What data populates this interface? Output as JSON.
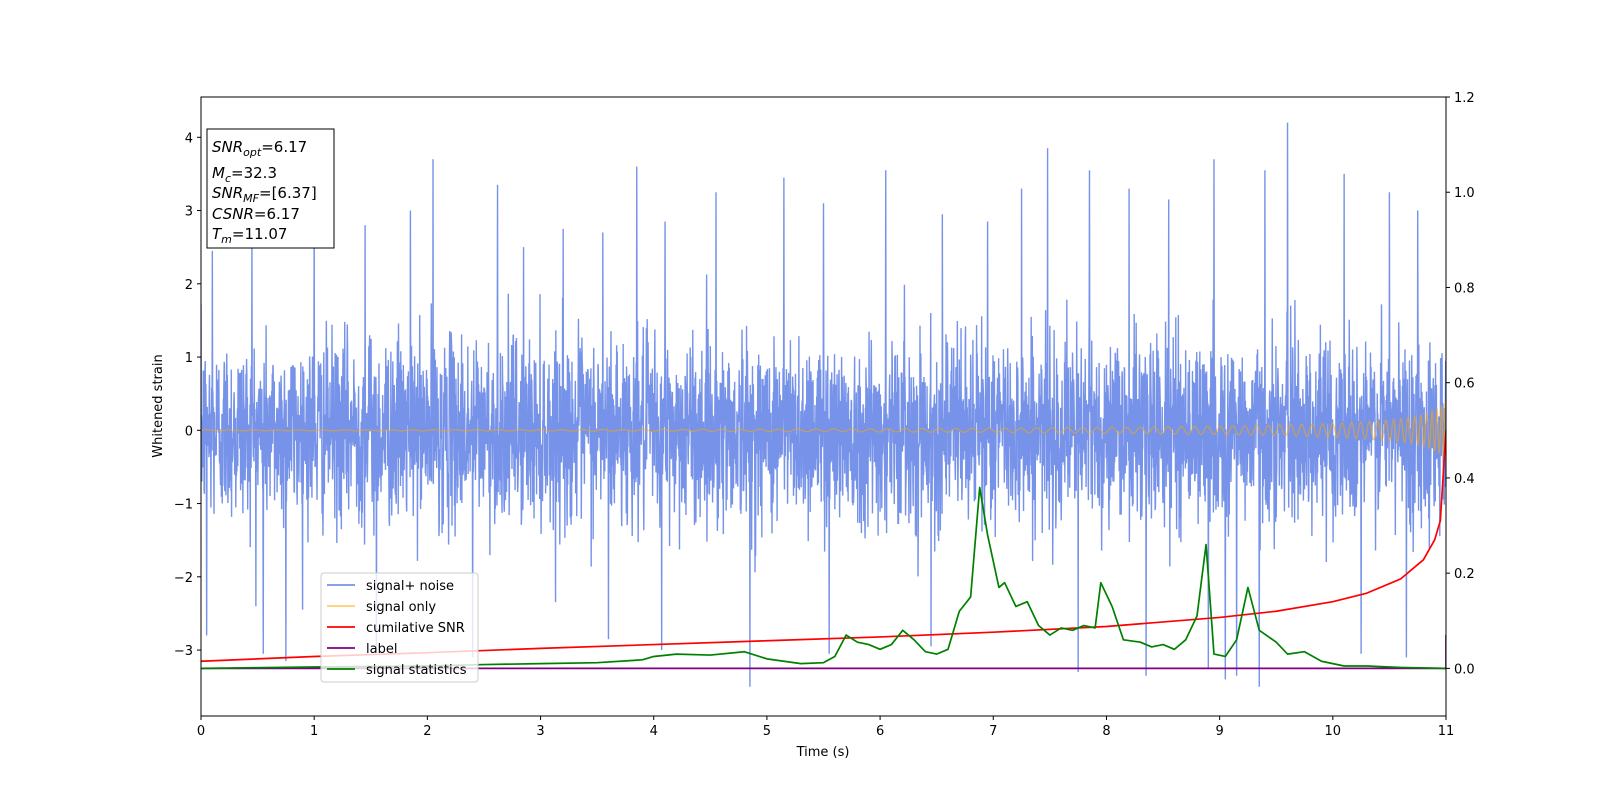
{
  "chart_data": {
    "type": "line",
    "xlabel": "Time (s)",
    "ylabel": "Whitened strain",
    "xlim": [
      0,
      11
    ],
    "ylim": [
      -3.9,
      4.55
    ],
    "y2lim": [
      -0.1,
      1.2
    ],
    "x_ticks": [
      "0",
      "1",
      "2",
      "3",
      "4",
      "5",
      "6",
      "7",
      "8",
      "9",
      "10",
      "11"
    ],
    "y_ticks": [
      "−3",
      "−2",
      "−1",
      "0",
      "1",
      "2",
      "3",
      "4"
    ],
    "y2_ticks": [
      "0.0",
      "0.2",
      "0.4",
      "0.6",
      "0.8",
      "1.0",
      "1.2"
    ],
    "grid": false,
    "legend_position": "lower-left",
    "info_box": {
      "snr_opt": {
        "base": "SNR",
        "sub": "opt",
        "value": "=6.17"
      },
      "mc": {
        "base": "M",
        "sub": "c",
        "value": "=32.3"
      },
      "snr_mf": {
        "base": "SNR",
        "sub": "MF",
        "value": "=[6.37]"
      },
      "csnr": {
        "base": "CSNR",
        "sub": "",
        "value": "=6.17"
      },
      "tm": {
        "base": "T",
        "sub": "m",
        "value": "=11.07"
      }
    },
    "series": [
      {
        "name": "signal+ noise",
        "color": "#4169e1",
        "axis": "left",
        "kind": "noise",
        "sigma": 1.0,
        "spikes": [
          [
            0.1,
            2.45
          ],
          [
            0.45,
            2.6
          ],
          [
            1.0,
            2.9
          ],
          [
            1.45,
            2.8
          ],
          [
            1.85,
            3.0
          ],
          [
            2.05,
            3.7
          ],
          [
            2.62,
            3.35
          ],
          [
            2.85,
            2.5
          ],
          [
            3.2,
            2.75
          ],
          [
            3.55,
            2.7
          ],
          [
            3.85,
            3.6
          ],
          [
            4.1,
            2.85
          ],
          [
            4.55,
            3.25
          ],
          [
            5.15,
            3.45
          ],
          [
            5.5,
            3.1
          ],
          [
            6.05,
            3.55
          ],
          [
            6.55,
            2.95
          ],
          [
            6.95,
            2.85
          ],
          [
            7.25,
            3.3
          ],
          [
            7.48,
            3.85
          ],
          [
            7.85,
            3.55
          ],
          [
            8.2,
            3.3
          ],
          [
            8.55,
            3.15
          ],
          [
            8.95,
            3.7
          ],
          [
            9.4,
            3.55
          ],
          [
            9.6,
            4.2
          ],
          [
            10.1,
            3.5
          ],
          [
            10.5,
            3.25
          ],
          [
            10.75,
            3.0
          ],
          [
            0.05,
            -2.8
          ],
          [
            0.55,
            -3.05
          ],
          [
            0.75,
            -3.15
          ],
          [
            1.55,
            -3.0
          ],
          [
            2.4,
            -3.1
          ],
          [
            3.6,
            -2.85
          ],
          [
            4.07,
            -3.0
          ],
          [
            4.85,
            -3.5
          ],
          [
            5.55,
            -3.05
          ],
          [
            6.45,
            -2.95
          ],
          [
            7.75,
            -3.3
          ],
          [
            8.35,
            -3.35
          ],
          [
            8.9,
            -3.25
          ],
          [
            9.05,
            -3.4
          ],
          [
            9.15,
            -3.35
          ],
          [
            9.35,
            -3.5
          ],
          [
            10.25,
            -3.05
          ],
          [
            10.65,
            -3.1
          ]
        ]
      },
      {
        "name": "signal only",
        "color": "#ffa500",
        "axis": "left",
        "kind": "chirp",
        "amplitude_start": 0.005,
        "amplitude_end": 0.42,
        "t_merge": 11.07
      },
      {
        "name": "cumilative SNR",
        "color": "#ff0000",
        "axis": "right",
        "x": [
          0,
          1,
          2,
          3,
          4,
          5,
          6,
          7,
          8,
          9,
          9.5,
          10,
          10.3,
          10.6,
          10.8,
          10.9,
          10.95,
          11.0
        ],
        "y": [
          0.015,
          0.025,
          0.033,
          0.042,
          0.05,
          0.058,
          0.066,
          0.076,
          0.088,
          0.107,
          0.12,
          0.14,
          0.158,
          0.188,
          0.228,
          0.27,
          0.31,
          0.5
        ]
      },
      {
        "name": "label",
        "color": "#800080",
        "axis": "right",
        "x": [
          0,
          10.99,
          11.0,
          11.0
        ],
        "y": [
          0.0,
          0.0,
          0.0,
          0.07
        ]
      },
      {
        "name": "signal statistics",
        "color": "#008000",
        "axis": "right",
        "x": [
          0,
          1,
          2,
          2.5,
          3,
          3.5,
          3.9,
          4.0,
          4.2,
          4.5,
          4.8,
          5.0,
          5.3,
          5.5,
          5.6,
          5.7,
          5.8,
          5.9,
          6.0,
          6.1,
          6.2,
          6.3,
          6.4,
          6.5,
          6.6,
          6.7,
          6.8,
          6.88,
          6.95,
          7.05,
          7.1,
          7.2,
          7.3,
          7.4,
          7.5,
          7.6,
          7.7,
          7.8,
          7.9,
          7.95,
          8.05,
          8.15,
          8.3,
          8.4,
          8.5,
          8.6,
          8.7,
          8.8,
          8.88,
          8.95,
          9.05,
          9.15,
          9.25,
          9.35,
          9.5,
          9.6,
          9.75,
          9.9,
          10.1,
          10.3,
          10.6,
          11.0
        ],
        "y": [
          0.0,
          0.003,
          0.005,
          0.008,
          0.01,
          0.012,
          0.018,
          0.025,
          0.03,
          0.028,
          0.035,
          0.02,
          0.01,
          0.012,
          0.025,
          0.07,
          0.055,
          0.05,
          0.04,
          0.05,
          0.08,
          0.06,
          0.035,
          0.03,
          0.04,
          0.12,
          0.15,
          0.38,
          0.28,
          0.17,
          0.18,
          0.13,
          0.14,
          0.09,
          0.07,
          0.085,
          0.08,
          0.09,
          0.085,
          0.18,
          0.13,
          0.06,
          0.055,
          0.045,
          0.05,
          0.04,
          0.06,
          0.11,
          0.26,
          0.03,
          0.025,
          0.06,
          0.17,
          0.08,
          0.055,
          0.03,
          0.035,
          0.015,
          0.005,
          0.005,
          0.002,
          0.0
        ]
      }
    ]
  }
}
